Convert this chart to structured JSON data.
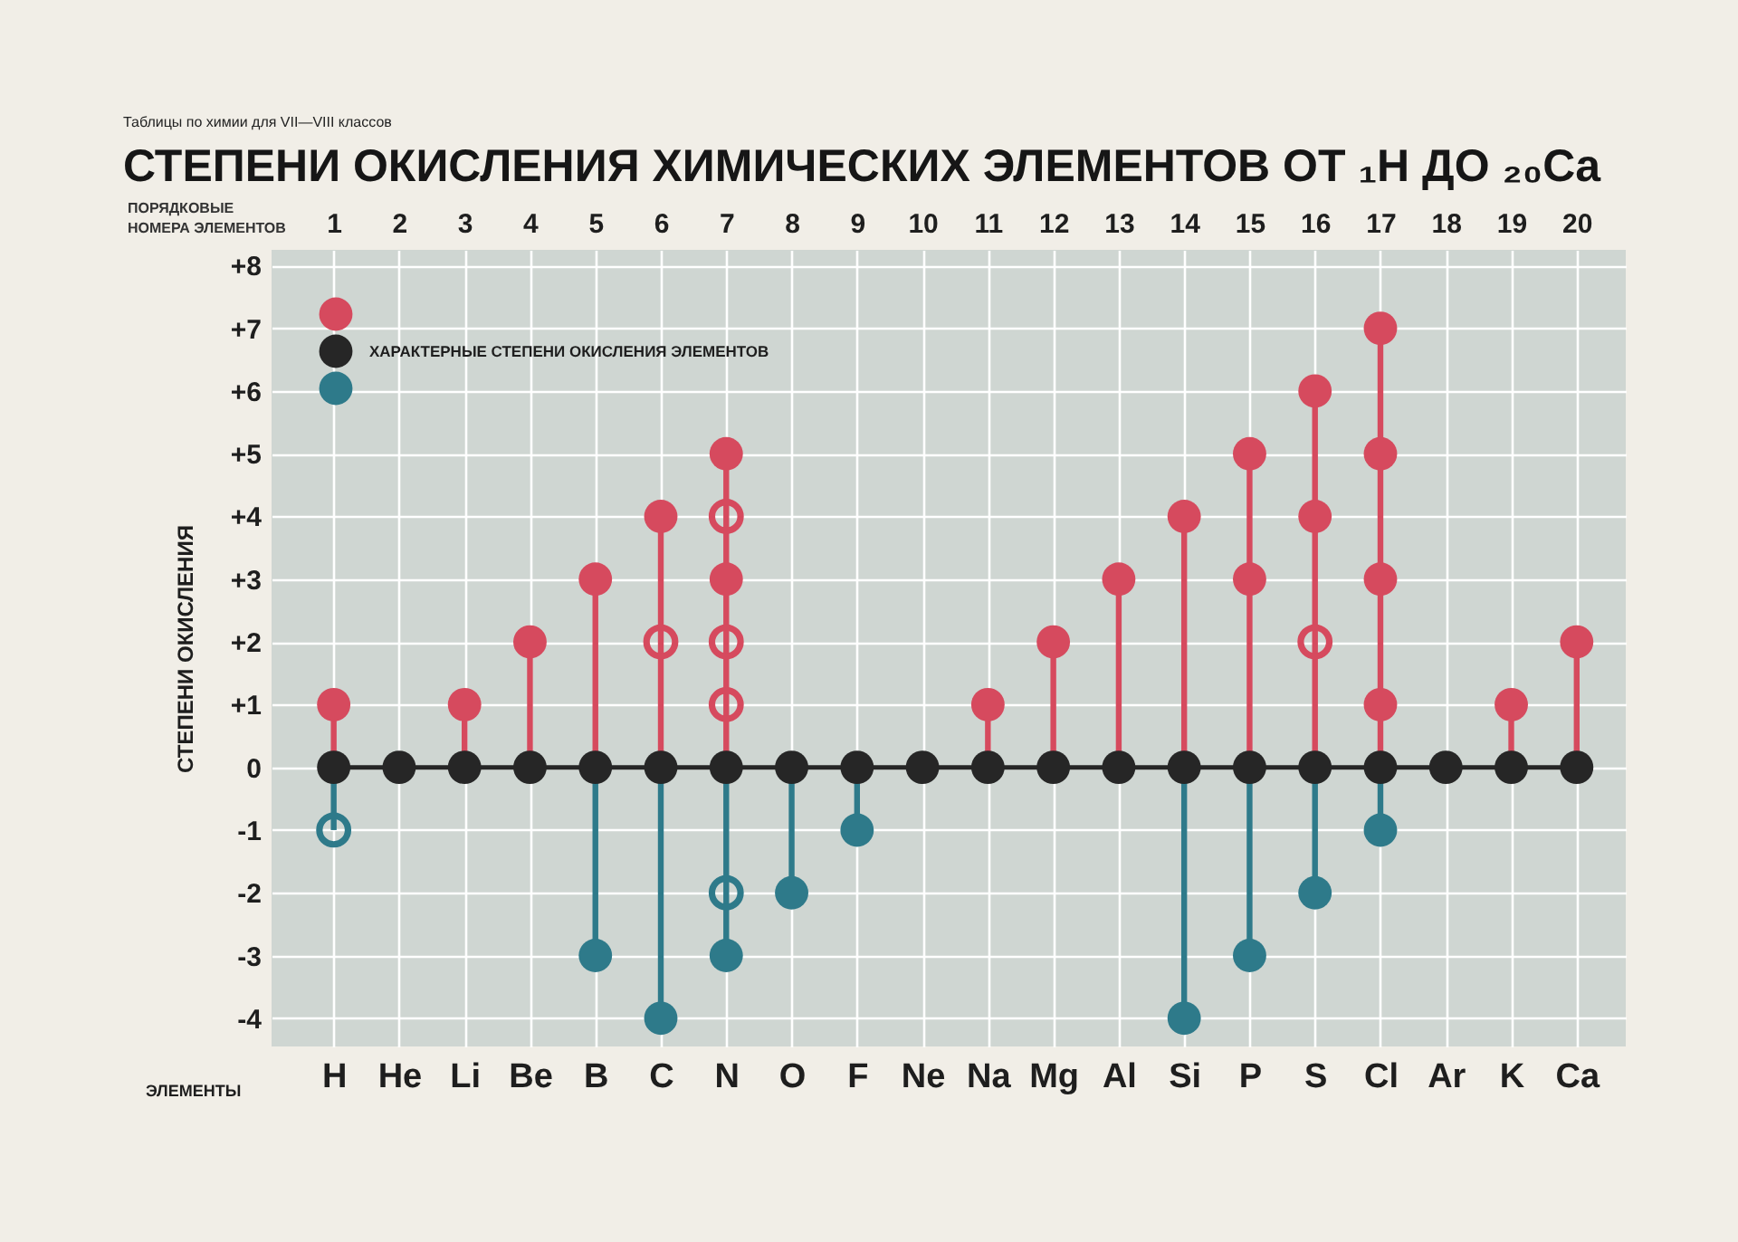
{
  "chart_data": {
    "type": "lollipop",
    "title": "СТЕПЕНИ ОКИСЛЕНИЯ ХИМИЧЕСКИХ ЭЛЕМЕНТОВ ОТ ₁H ДО ₂₀Ca",
    "subtitle": "Таблицы по химии для VII—VIII классов",
    "xlabel": "ЭЛЕМЕНТЫ",
    "x2label": "ПОРЯДКОВЫЕ НОМЕРА ЭЛЕМЕНТОВ",
    "ylabel": "СТЕПЕНИ ОКИСЛЕНИЯ",
    "legend": "top left",
    "grid": true,
    "categories": [
      "H",
      "He",
      "Li",
      "Be",
      "B",
      "C",
      "N",
      "O",
      "F",
      "Ne",
      "Na",
      "Mg",
      "Al",
      "Si",
      "P",
      "S",
      "Cl",
      "Ar",
      "K",
      "Ca"
    ],
    "x2lim": [
      0.05,
      20.75
    ],
    "x2ticks": [
      1,
      2,
      3,
      4,
      5,
      6,
      7,
      8,
      9,
      10,
      11,
      12,
      13,
      14,
      15,
      16,
      17,
      18,
      19,
      20
    ],
    "ylim": [
      -4.45,
      8.25
    ],
    "yticks": [
      {
        "value": 8,
        "label": "+8"
      },
      {
        "value": 7,
        "label": "+7"
      },
      {
        "value": 6,
        "label": "+6"
      },
      {
        "value": 5,
        "label": "+5"
      },
      {
        "value": 4,
        "label": "+4"
      },
      {
        "value": 3,
        "label": "+3"
      },
      {
        "value": 2,
        "label": "+2"
      },
      {
        "value": 1,
        "label": "+1"
      },
      0,
      -1,
      -2,
      -3,
      -4
    ],
    "series": [
      {
        "marker": "circle",
        "color": "#d64a5e",
        "values": [
          1,
          null,
          1,
          2,
          3,
          4,
          5,
          null,
          null,
          null,
          1,
          2,
          3,
          4,
          5,
          6,
          7,
          null,
          1,
          2
        ]
      },
      {
        "type": "line",
        "marker": "circle",
        "name": "ХАРАКТЕРНЫЕ СТЕПЕНИ ОКИСЛЕНИЯ ЭЛЕМЕНТОВ",
        "color": "#262626",
        "values": [
          0,
          0,
          0,
          0,
          0,
          0,
          0,
          0,
          0,
          0,
          0,
          0,
          0,
          0,
          0,
          0,
          0,
          0,
          0,
          0
        ]
      },
      {
        "marker": "circle",
        "color": "#2e7a8a",
        "values": [
          null,
          null,
          null,
          null,
          -3,
          -4,
          -3,
          -2,
          -1,
          null,
          null,
          null,
          null,
          -4,
          -3,
          -2,
          -1,
          null,
          null,
          null
        ]
      },
      {
        "marker": "circle-open",
        "color": "#2e7a8a",
        "values": [
          -1,
          null,
          null,
          null,
          null,
          null,
          null,
          null,
          null,
          null,
          null,
          null,
          null,
          null,
          null,
          null,
          null,
          null,
          null,
          null
        ]
      },
      {
        "type": "scatter",
        "marker": "circle",
        "color": "#d64a5e",
        "x": [
          "N",
          "P",
          "S",
          "Cl",
          "Cl",
          "Cl"
        ],
        "values": [
          3,
          3,
          4,
          5,
          3,
          1
        ]
      },
      {
        "type": "scatter",
        "marker": "circle-open",
        "color": "#d64a5e",
        "x": [
          "C",
          "N",
          "N",
          "N",
          "S"
        ],
        "values": [
          2,
          4,
          2,
          1,
          2
        ]
      },
      {
        "type": "scatter",
        "marker": "circle-open",
        "color": "#2e7a8a",
        "x": [
          "N"
        ],
        "values": [
          -2
        ]
      }
    ]
  }
}
